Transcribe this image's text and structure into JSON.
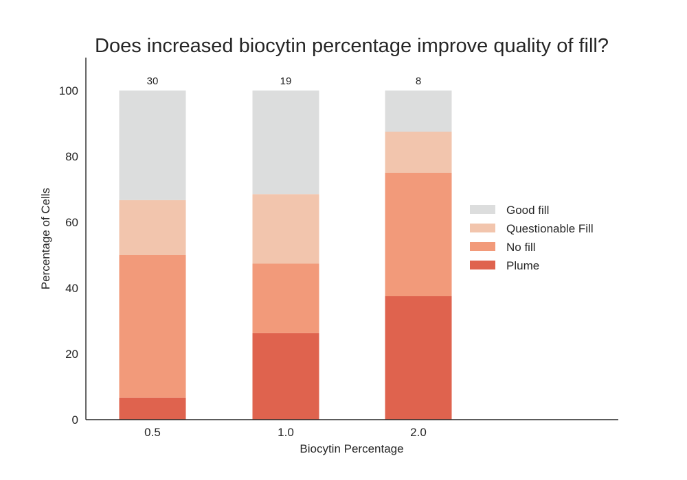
{
  "chart_data": {
    "type": "bar",
    "stacked": true,
    "title": "Does increased biocytin percentage improve quality of fill?",
    "xlabel": "Biocytin Percentage",
    "ylabel": "Percentage of Cells",
    "categories": [
      "0.5",
      "1.0",
      "2.0"
    ],
    "cell_counts": [
      "30",
      "19",
      "8"
    ],
    "ylim": [
      0,
      110
    ],
    "yticks": [
      "0",
      "20",
      "40",
      "60",
      "80",
      "100"
    ],
    "grid": false,
    "legend_position": "right",
    "series": [
      {
        "name": "Plume",
        "color": "#df634e",
        "values": [
          6.7,
          26.3,
          37.5
        ]
      },
      {
        "name": "No fill",
        "color": "#f29a7a",
        "values": [
          43.3,
          21.1,
          37.5
        ]
      },
      {
        "name": "Questionable Fill",
        "color": "#f2c5ad",
        "values": [
          16.7,
          21.1,
          12.5
        ]
      },
      {
        "name": "Good fill",
        "color": "#dcdddd",
        "values": [
          33.3,
          31.5,
          12.5
        ]
      }
    ],
    "legend_order": [
      "Good fill",
      "Questionable Fill",
      "No fill",
      "Plume"
    ]
  }
}
